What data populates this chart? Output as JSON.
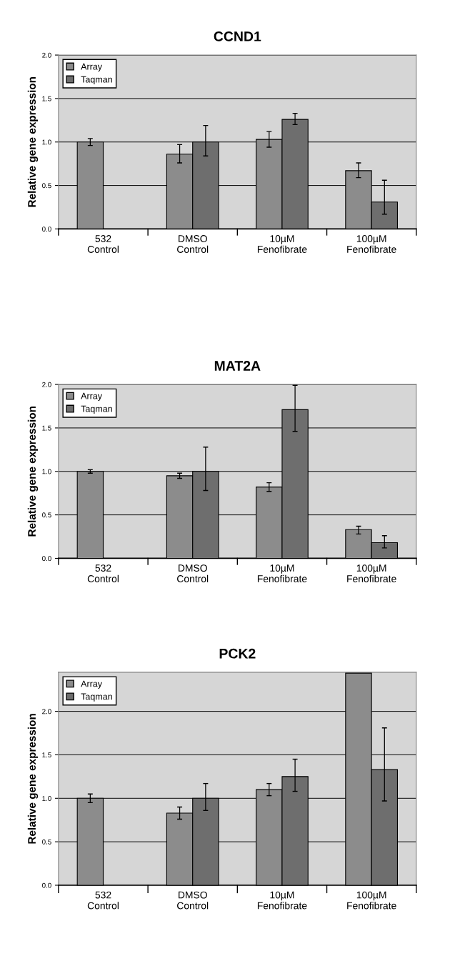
{
  "chart_data": [
    {
      "type": "bar",
      "title": "CCND1",
      "ylabel": "Relative gene expression",
      "categories": [
        "532\nControl",
        "DMSO\nControl",
        "10µM\nFenofibrate",
        "100µM\nFenofibrate"
      ],
      "ylim": [
        0,
        2.0
      ],
      "yticks": [
        {
          "value": 0,
          "label": "0.0"
        },
        {
          "value": 0.5,
          "label": "0.5"
        },
        {
          "value": 1.0,
          "label": "1.0"
        },
        {
          "value": 1.5,
          "label": "1.5"
        },
        {
          "value": 2.0,
          "label": "2.0"
        }
      ],
      "grid": "y",
      "legend": "top left",
      "series": [
        {
          "name": "Array",
          "color": "#8c8c8c",
          "values": [
            1.0,
            0.86,
            1.03,
            0.67
          ],
          "errors": [
            [
              0.96,
              1.04
            ],
            [
              0.76,
              0.97
            ],
            [
              0.94,
              1.12
            ],
            [
              0.59,
              0.76
            ]
          ]
        },
        {
          "name": "Taqman",
          "color": "#6e6e6e",
          "values": [
            null,
            1.0,
            1.26,
            0.31
          ],
          "errors": [
            null,
            [
              0.84,
              1.19
            ],
            [
              1.2,
              1.33
            ],
            [
              0.17,
              0.56
            ]
          ]
        }
      ]
    },
    {
      "type": "bar",
      "title": "MAT2A",
      "ylabel": "Relative gene expression",
      "categories": [
        "532\nControl",
        "DMSO\nControl",
        "10µM\nFenofibrate",
        "100µM\nFenofibrate"
      ],
      "ylim": [
        0,
        2.0
      ],
      "yticks": [
        {
          "value": 0,
          "label": "0.0"
        },
        {
          "value": 0.5,
          "label": "0.5"
        },
        {
          "value": 1.0,
          "label": "1.0"
        },
        {
          "value": 1.5,
          "label": "1.5"
        },
        {
          "value": 2.0,
          "label": "2.0"
        }
      ],
      "grid": "y",
      "legend": "top left",
      "series": [
        {
          "name": "Array",
          "color": "#8c8c8c",
          "values": [
            1.0,
            0.95,
            0.82,
            0.33
          ],
          "errors": [
            [
              0.98,
              1.02
            ],
            [
              0.92,
              0.98
            ],
            [
              0.77,
              0.87
            ],
            [
              0.28,
              0.37
            ]
          ]
        },
        {
          "name": "Taqman",
          "color": "#6e6e6e",
          "values": [
            null,
            1.0,
            1.71,
            0.18
          ],
          "errors": [
            null,
            [
              0.78,
              1.28
            ],
            [
              1.46,
              1.99
            ],
            [
              0.12,
              0.26
            ]
          ]
        }
      ]
    },
    {
      "type": "bar",
      "title": "PCK2",
      "ylabel": "Relative gene expression",
      "categories": [
        "532\nControl",
        "DMSO\nControl",
        "10µM\nFenofibrate",
        "100µM\nFenofibrate"
      ],
      "ylim": [
        0,
        2.45
      ],
      "yticks": [
        {
          "value": 0,
          "label": "0.0"
        },
        {
          "value": 0.5,
          "label": "0.5"
        },
        {
          "value": 1.0,
          "label": "1.0"
        },
        {
          "value": 1.5,
          "label": "1.5"
        },
        {
          "value": 2.0,
          "label": "2.0"
        }
      ],
      "grid": "y",
      "legend": "top left",
      "series": [
        {
          "name": "Array",
          "color": "#8c8c8c",
          "values": [
            1.0,
            0.83,
            1.1,
            2.44
          ],
          "errors": [
            [
              0.95,
              1.05
            ],
            [
              0.76,
              0.9
            ],
            [
              1.03,
              1.17
            ],
            null
          ]
        },
        {
          "name": "Taqman",
          "color": "#6e6e6e",
          "values": [
            null,
            1.0,
            1.25,
            1.33
          ],
          "errors": [
            null,
            [
              0.86,
              1.17
            ],
            [
              1.08,
              1.45
            ],
            [
              0.97,
              1.81
            ]
          ]
        }
      ]
    }
  ]
}
